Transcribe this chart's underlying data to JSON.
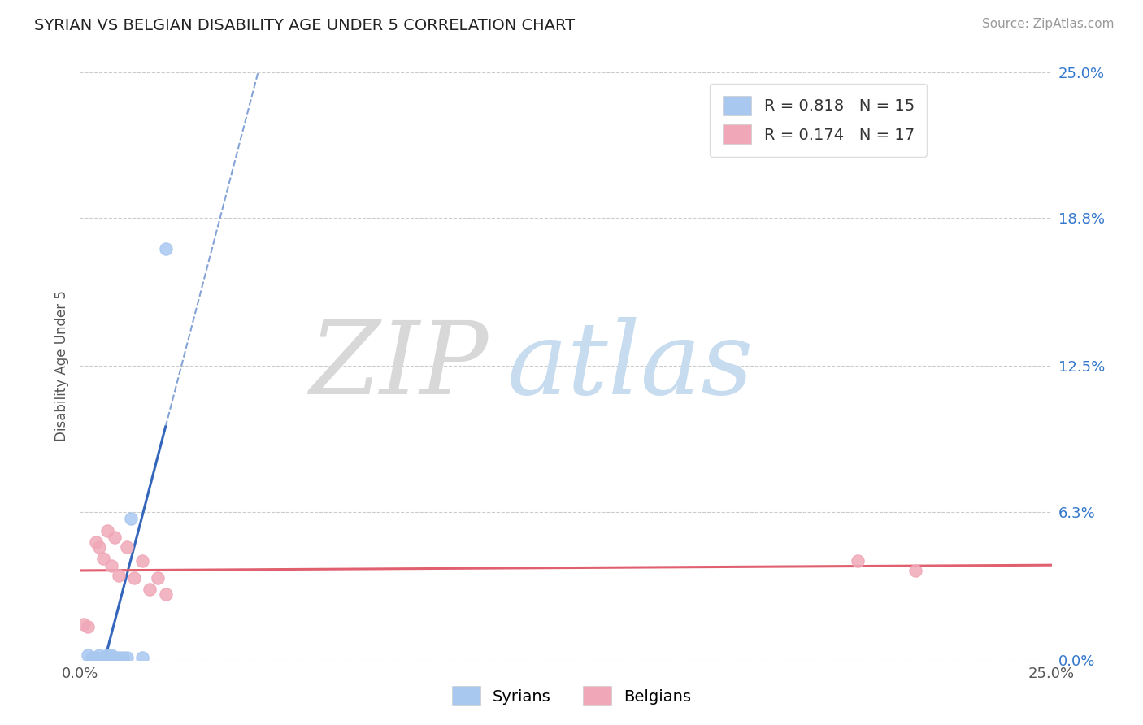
{
  "title": "SYRIAN VS BELGIAN DISABILITY AGE UNDER 5 CORRELATION CHART",
  "source": "Source: ZipAtlas.com",
  "ylabel_label": "Disability Age Under 5",
  "xlim": [
    0.0,
    0.25
  ],
  "ylim": [
    0.0,
    0.25
  ],
  "xtick_values": [
    0.0,
    0.25
  ],
  "xtick_labels": [
    "0.0%",
    "25.0%"
  ],
  "ytick_labels": [
    "0.0%",
    "6.3%",
    "12.5%",
    "18.8%",
    "25.0%"
  ],
  "ytick_values": [
    0.0,
    0.063,
    0.125,
    0.188,
    0.25
  ],
  "grid_color": "#cccccc",
  "background_color": "#ffffff",
  "syrian_color": "#a8c8f0",
  "belgian_color": "#f0a8b8",
  "syrian_line_color": "#3366bb",
  "belgian_line_color": "#e06070",
  "syrian_scatter": {
    "x": [
      0.002,
      0.003,
      0.004,
      0.005,
      0.006,
      0.007,
      0.007,
      0.008,
      0.009,
      0.01,
      0.011,
      0.012,
      0.013,
      0.016,
      0.022
    ],
    "y": [
      0.002,
      0.001,
      0.001,
      0.002,
      0.001,
      0.001,
      0.002,
      0.002,
      0.001,
      0.001,
      0.001,
      0.001,
      0.06,
      0.001,
      0.175
    ]
  },
  "belgian_scatter": {
    "x": [
      0.001,
      0.002,
      0.004,
      0.005,
      0.006,
      0.007,
      0.008,
      0.009,
      0.01,
      0.012,
      0.014,
      0.016,
      0.018,
      0.02,
      0.022,
      0.2,
      0.215
    ],
    "y": [
      0.015,
      0.014,
      0.05,
      0.048,
      0.043,
      0.055,
      0.04,
      0.052,
      0.036,
      0.048,
      0.035,
      0.042,
      0.03,
      0.035,
      0.028,
      0.042,
      0.038
    ]
  },
  "legend_syrian_R": "R = 0.818",
  "legend_syrian_N": "N = 15",
  "legend_belgian_R": "R = 0.174",
  "legend_belgian_N": "N = 17",
  "watermark_zip_color": "#d8d8d8",
  "watermark_atlas_color": "#c8dcf0",
  "watermark_fontsize": 90
}
